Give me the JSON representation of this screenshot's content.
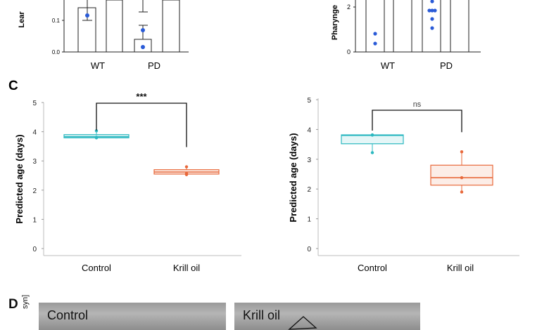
{
  "panel_labels": {
    "c": "C",
    "d": "D"
  },
  "top_left": {
    "ylabel_fragment": "Lear",
    "yticks": [
      "0.1",
      "0.0"
    ],
    "xticks": [
      "WT",
      "PD"
    ]
  },
  "top_right": {
    "ylabel_fragment": "Pharynge",
    "yticks": [
      "2",
      "0"
    ],
    "xticks": [
      "WT",
      "PD"
    ]
  },
  "chart_data": [
    {
      "type": "boxplot",
      "ylabel": "Predicted age (days)",
      "categories": [
        "Control",
        "Krill oil"
      ],
      "ylim": [
        0,
        5
      ],
      "yticks": [
        "0",
        "1",
        "2",
        "3",
        "4",
        "5"
      ],
      "significance": "***",
      "colors": {
        "Control": "#2bb8c0",
        "Krill oil": "#e8683a"
      },
      "boxes": [
        {
          "category": "Control",
          "q1": 3.79,
          "median": 3.83,
          "q3": 3.9,
          "points": [
            4.03,
            3.81,
            3.79
          ]
        },
        {
          "category": "Krill oil",
          "q1": 2.55,
          "median": 2.62,
          "q3": 2.7,
          "points": [
            2.8,
            2.57,
            2.53
          ]
        }
      ]
    },
    {
      "type": "boxplot",
      "ylabel": "Predicted age (days)",
      "categories": [
        "Control",
        "Krill oil"
      ],
      "ylim": [
        0,
        5
      ],
      "yticks": [
        "0",
        "1",
        "2",
        "3",
        "4",
        "5"
      ],
      "significance": "ns",
      "colors": {
        "Control": "#2bb8c0",
        "Krill oil": "#e8683a"
      },
      "boxes": [
        {
          "category": "Control",
          "q1": 3.52,
          "median": 3.8,
          "q3": 3.82,
          "points": [
            3.82,
            3.81,
            3.22
          ]
        },
        {
          "category": "Krill oil",
          "q1": 2.13,
          "median": 2.38,
          "q3": 2.8,
          "points": [
            3.25,
            2.38,
            1.9
          ]
        }
      ]
    }
  ],
  "micrographs": [
    {
      "label": "Control"
    },
    {
      "label": "Krill oil"
    }
  ],
  "side_label": "syn]"
}
